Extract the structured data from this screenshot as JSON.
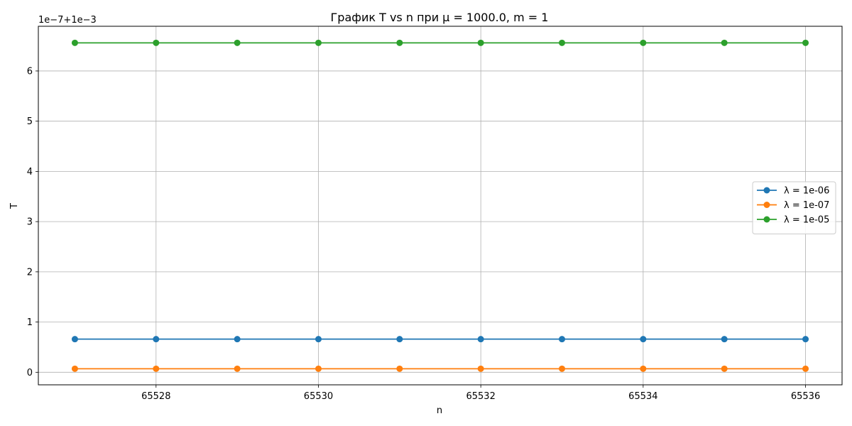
{
  "chart_data": {
    "type": "line",
    "title": "График T vs n при μ = 1000.0, m = 1",
    "xlabel": "n",
    "ylabel": "T",
    "y_offset_label": "1e−7+1e−3",
    "x": [
      65527,
      65528,
      65529,
      65530,
      65531,
      65532,
      65533,
      65534,
      65535,
      65536
    ],
    "xlim": [
      65526.55,
      65536.45
    ],
    "ylim": [
      -0.25,
      6.89
    ],
    "x_ticks": [
      65528,
      65530,
      65532,
      65534,
      65536
    ],
    "y_ticks": [
      0,
      1,
      2,
      3,
      4,
      5,
      6
    ],
    "grid": true,
    "legend_position": "center-right",
    "series": [
      {
        "name": "λ = 1e-06",
        "color": "#1f77b4",
        "values": [
          0.66,
          0.66,
          0.66,
          0.66,
          0.66,
          0.66,
          0.66,
          0.66,
          0.66,
          0.66
        ]
      },
      {
        "name": "λ = 1e-07",
        "color": "#ff7f0e",
        "values": [
          0.07,
          0.07,
          0.07,
          0.07,
          0.07,
          0.07,
          0.07,
          0.07,
          0.07,
          0.07
        ]
      },
      {
        "name": "λ = 1e-05",
        "color": "#2ca02c",
        "values": [
          6.56,
          6.56,
          6.56,
          6.56,
          6.56,
          6.56,
          6.56,
          6.56,
          6.56,
          6.56
        ]
      }
    ]
  }
}
